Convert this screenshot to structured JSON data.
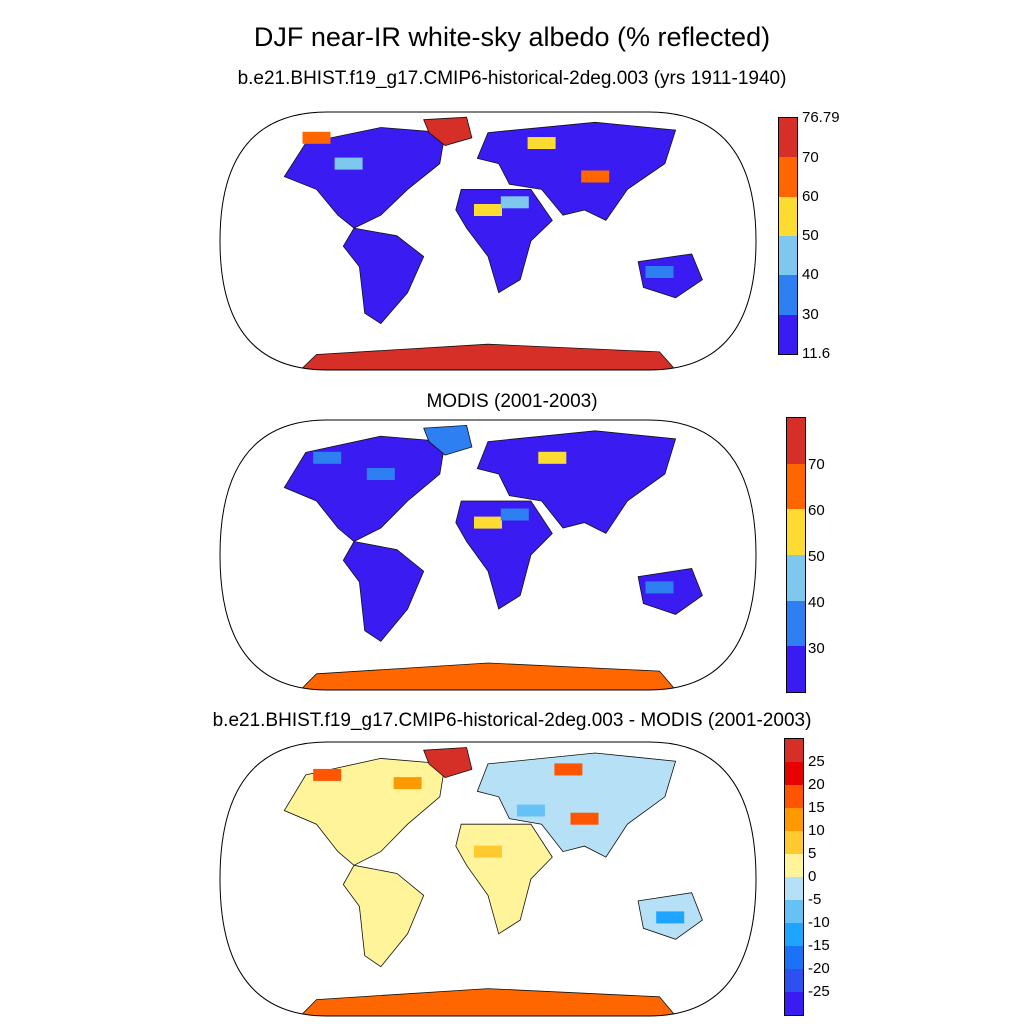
{
  "title": "DJF near-IR white-sky albedo (% reflected)",
  "panels": [
    {
      "title": "b.e21.BHIST.f19_g17.CMIP6-historical-2deg.003 (yrs 1911-1940)",
      "colorbar": {
        "colors": [
          "#d62f27",
          "#ff6600",
          "#fddc32",
          "#7ec8f0",
          "#2e7ff2",
          "#3a1cf2"
        ],
        "labels": [
          "76.79",
          "70",
          "60",
          "50",
          "40",
          "30",
          "11.6"
        ]
      }
    },
    {
      "title": "MODIS (2001-2003)",
      "colorbar": {
        "colors": [
          "#d62f27",
          "#ff6600",
          "#fddc32",
          "#7ec8f0",
          "#2e7ff2",
          "#3a1cf2"
        ],
        "labels": [
          "70",
          "60",
          "50",
          "40",
          "30"
        ]
      }
    },
    {
      "title": "b.e21.BHIST.f19_g17.CMIP6-historical-2deg.003 - MODIS (2001-2003)",
      "colorbar": {
        "colors": [
          "#d62f27",
          "#e60000",
          "#ff5500",
          "#ff9900",
          "#ffc930",
          "#fff49a",
          "#b5e0f5",
          "#66c2f5",
          "#1ea5ff",
          "#1a73f5",
          "#2e50f0",
          "#3a1cf2"
        ],
        "labels": [
          "25",
          "20",
          "15",
          "10",
          "5",
          "0",
          "-5",
          "-10",
          "-15",
          "-20",
          "-25"
        ]
      }
    }
  ]
}
